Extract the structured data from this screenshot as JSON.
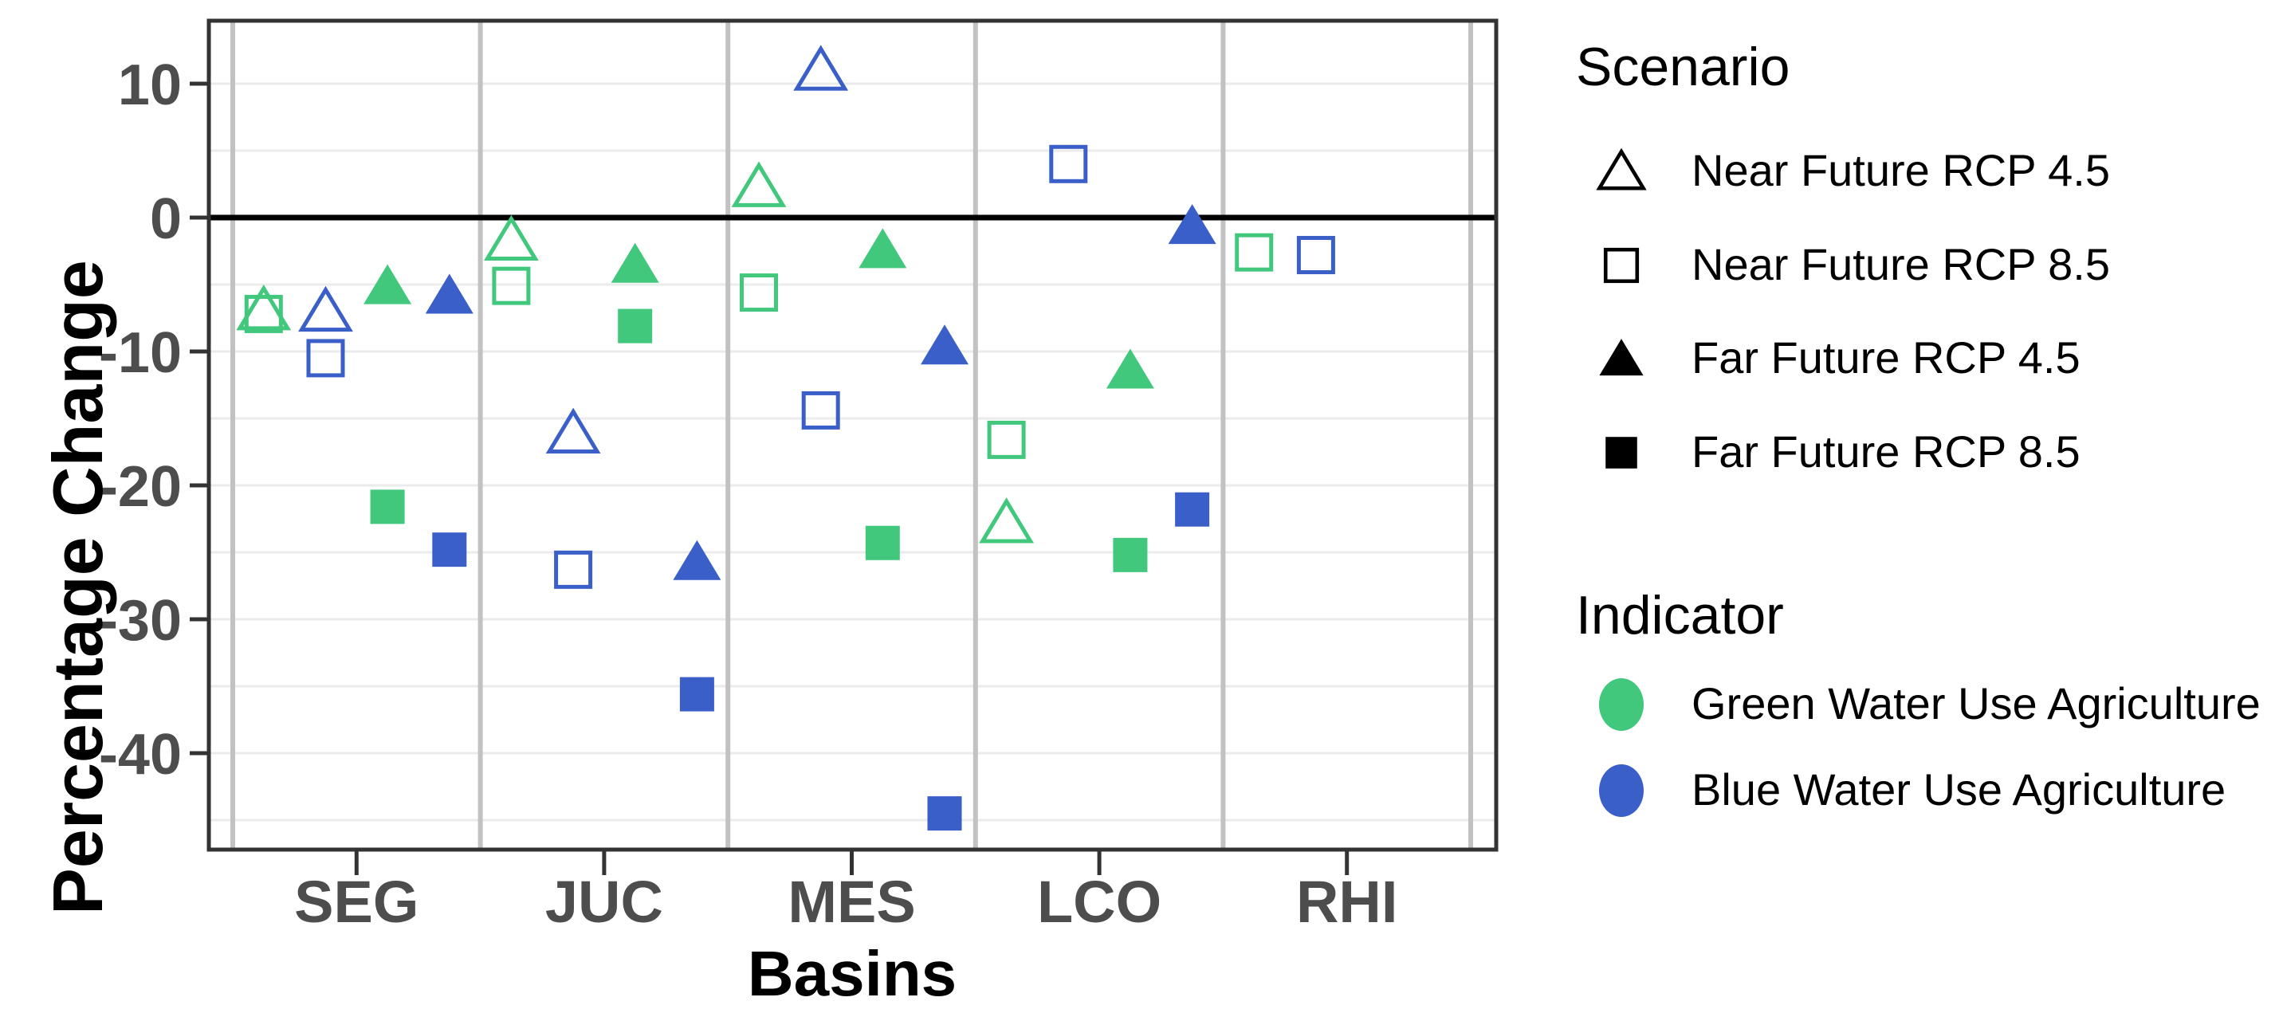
{
  "figure": {
    "y_axis_title": "Percentage Change",
    "x_axis_title": "Basins",
    "colors": {
      "green": "#41C87D",
      "blue": "#3A5FC8",
      "axis_text": "#4D4D4D",
      "title_text": "#000000",
      "gridline": "#EBEBEB",
      "separator": "#C2C2C2",
      "panel_border": "#333333",
      "zero_line": "#000000"
    }
  },
  "legend": {
    "scenario": {
      "title": "Scenario",
      "items": [
        {
          "label": "Near Future RCP 4.5",
          "shape": "triangle",
          "fill": "open"
        },
        {
          "label": "Near Future RCP 8.5",
          "shape": "square",
          "fill": "open"
        },
        {
          "label": "Far Future RCP 4.5",
          "shape": "triangle",
          "fill": "solid"
        },
        {
          "label": "Far Future RCP 8.5",
          "shape": "square",
          "fill": "solid"
        }
      ]
    },
    "indicator": {
      "title": "Indicator",
      "items": [
        {
          "label": "Green Water Use Agriculture",
          "color_key": "green"
        },
        {
          "label": "Blue Water Use Agriculture",
          "color_key": "blue"
        }
      ]
    }
  },
  "chart_data": {
    "type": "scatter",
    "title": "",
    "xlabel": "Basins",
    "ylabel": "Percentage Change",
    "categories": [
      "SEG",
      "JUC",
      "MES",
      "LCO",
      "RHI"
    ],
    "y_ticks": [
      10,
      0,
      -10,
      -20,
      -30,
      -40
    ],
    "ylim": [
      -47,
      14.7
    ],
    "grid_step": 5,
    "zero_line": true,
    "legend_position": "right",
    "series": [
      {
        "indicator": "Green Water Use Agriculture",
        "scenario": "Near Future RCP 4.5",
        "indicator_key": "green",
        "period_key": "near",
        "shape": "triangle",
        "fill": "open",
        "values": [
          -6.9,
          -1.7,
          2.3,
          -22.8,
          null
        ]
      },
      {
        "indicator": "Green Water Use Agriculture",
        "scenario": "Near Future RCP 8.5",
        "indicator_key": "green",
        "period_key": "near",
        "shape": "square",
        "fill": "open",
        "values": [
          -7.2,
          -5.1,
          -5.6,
          -16.6,
          -2.6
        ]
      },
      {
        "indicator": "Blue Water Use Agriculture",
        "scenario": "Near Future RCP 4.5",
        "indicator_key": "blue",
        "period_key": "near",
        "shape": "triangle",
        "fill": "open",
        "values": [
          -7.0,
          -16.1,
          11.0,
          null,
          null
        ]
      },
      {
        "indicator": "Blue Water Use Agriculture",
        "scenario": "Near Future RCP 8.5",
        "indicator_key": "blue",
        "period_key": "near",
        "shape": "square",
        "fill": "open",
        "values": [
          -10.5,
          -26.3,
          -14.4,
          4.0,
          -2.8
        ]
      },
      {
        "indicator": "Green Water Use Agriculture",
        "scenario": "Far Future RCP 4.5",
        "indicator_key": "green",
        "period_key": "far",
        "shape": "triangle",
        "fill": "solid",
        "values": [
          -5.1,
          -3.5,
          -2.4,
          -11.4,
          null
        ]
      },
      {
        "indicator": "Green Water Use Agriculture",
        "scenario": "Far Future RCP 8.5",
        "indicator_key": "green",
        "period_key": "far",
        "shape": "square",
        "fill": "solid",
        "values": [
          -21.6,
          -8.1,
          -24.3,
          -25.2,
          null
        ]
      },
      {
        "indicator": "Blue Water Use Agriculture",
        "scenario": "Far Future RCP 4.5",
        "indicator_key": "blue",
        "period_key": "far",
        "shape": "triangle",
        "fill": "solid",
        "values": [
          -5.8,
          -25.7,
          -9.6,
          -0.6,
          null
        ]
      },
      {
        "indicator": "Blue Water Use Agriculture",
        "scenario": "Far Future RCP 8.5",
        "indicator_key": "blue",
        "period_key": "far",
        "shape": "square",
        "fill": "solid",
        "values": [
          -24.8,
          -35.6,
          -44.5,
          -21.8,
          null
        ]
      }
    ]
  }
}
